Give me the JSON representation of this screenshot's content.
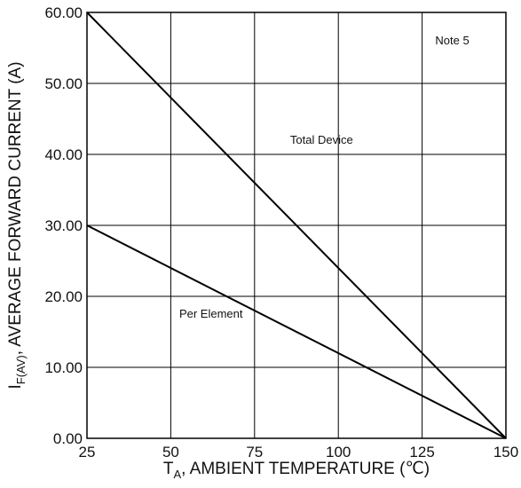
{
  "chart_data": {
    "type": "line",
    "title": "",
    "x": [
      25,
      150
    ],
    "xlim": [
      25,
      150
    ],
    "ylim": [
      0,
      60
    ],
    "xticks": [
      25,
      50,
      75,
      100,
      125,
      150
    ],
    "yticks": [
      0,
      10,
      20,
      30,
      40,
      50,
      60
    ],
    "xtick_labels": [
      "25",
      "50",
      "75",
      "100",
      "125",
      "150"
    ],
    "ytick_labels": [
      "0.00",
      "10.00",
      "20.00",
      "30.00",
      "40.00",
      "50.00",
      "60.00"
    ],
    "grid": true,
    "xlabel": {
      "main": "T",
      "sub": "A",
      "rest": ", AMBIENT TEMPERATURE (℃)"
    },
    "ylabel": {
      "main": "I",
      "sub": "F(AV)",
      "rest": ", AVERAGE FORWARD CURRENT (A)"
    },
    "series": [
      {
        "name": "Total Device",
        "x": [
          25,
          150
        ],
        "y": [
          60,
          0
        ]
      },
      {
        "name": "Per Element",
        "x": [
          25,
          150
        ],
        "y": [
          30,
          0
        ]
      }
    ],
    "annotations": [
      {
        "text": "Note 5",
        "x": 134,
        "y": 55.5
      },
      {
        "text": "Total Device",
        "x": 95,
        "y": 41.5
      },
      {
        "text": "Per Element",
        "x": 62,
        "y": 17
      }
    ]
  }
}
